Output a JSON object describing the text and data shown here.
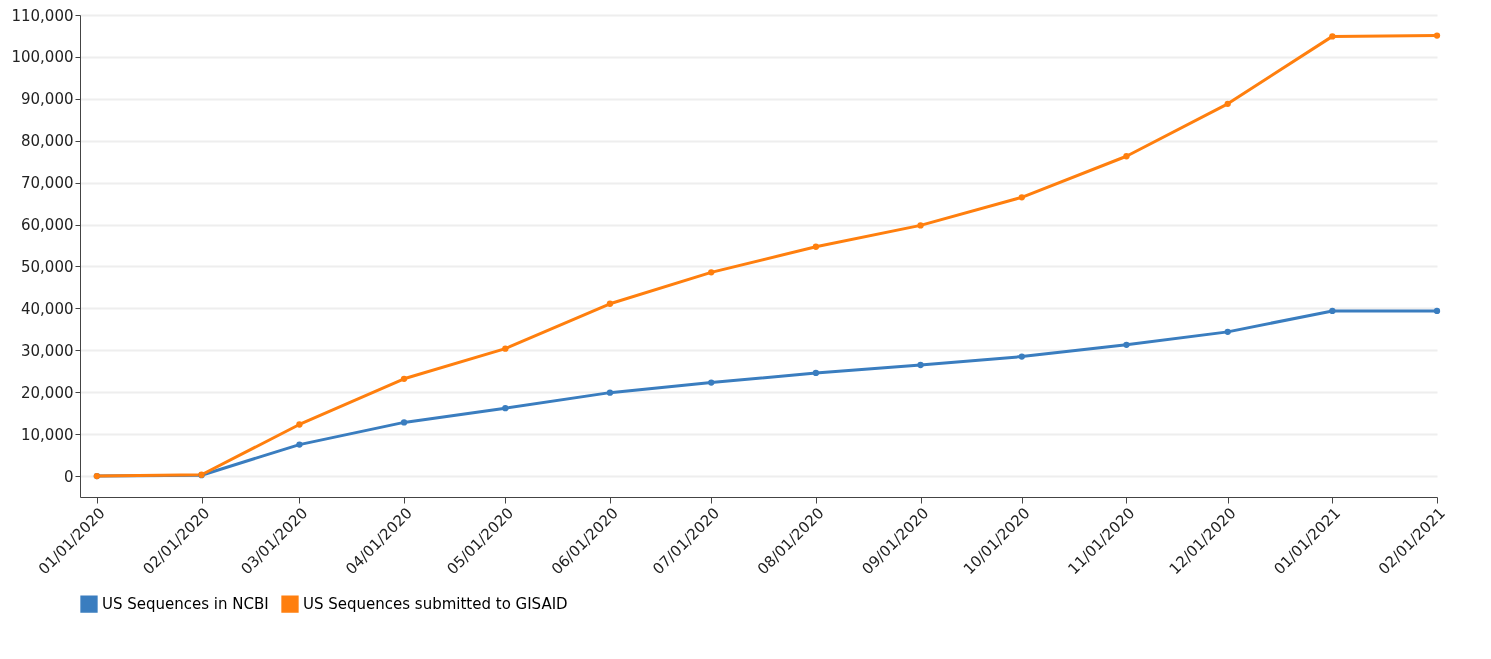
{
  "chart_data": {
    "type": "line",
    "x": [
      "2020-01-01",
      "2020-02-01",
      "2020-03-01",
      "2020-04-01",
      "2020-05-01",
      "2020-06-01",
      "2020-07-01",
      "2020-08-01",
      "2020-09-01",
      "2020-10-01",
      "2020-11-01",
      "2020-12-01",
      "2021-01-01",
      "2021-02-01"
    ],
    "xlim": [
      "2019-12-27",
      "2021-02-01"
    ],
    "xticks": [
      {
        "value": "2020-01-01",
        "label": "01/01/2020"
      },
      {
        "value": "2020-02-01",
        "label": "02/01/2020"
      },
      {
        "value": "2020-03-01",
        "label": "03/01/2020"
      },
      {
        "value": "2020-04-01",
        "label": "04/01/2020"
      },
      {
        "value": "2020-05-01",
        "label": "05/01/2020"
      },
      {
        "value": "2020-06-01",
        "label": "06/01/2020"
      },
      {
        "value": "2020-07-01",
        "label": "07/01/2020"
      },
      {
        "value": "2020-08-01",
        "label": "08/01/2020"
      },
      {
        "value": "2020-09-01",
        "label": "09/01/2020"
      },
      {
        "value": "2020-10-01",
        "label": "10/01/2020"
      },
      {
        "value": "2020-11-01",
        "label": "11/01/2020"
      },
      {
        "value": "2020-12-01",
        "label": "12/01/2020"
      },
      {
        "value": "2021-01-01",
        "label": "01/01/2021"
      },
      {
        "value": "2021-02-01",
        "label": "02/01/2021"
      }
    ],
    "ylim": [
      -5000,
      110000
    ],
    "yticks": [
      {
        "value": 0,
        "label": "0"
      },
      {
        "value": 10000,
        "label": "10,000"
      },
      {
        "value": 20000,
        "label": "20,000"
      },
      {
        "value": 30000,
        "label": "30,000"
      },
      {
        "value": 40000,
        "label": "40,000"
      },
      {
        "value": 50000,
        "label": "50,000"
      },
      {
        "value": 60000,
        "label": "60,000"
      },
      {
        "value": 70000,
        "label": "70,000"
      },
      {
        "value": 80000,
        "label": "80,000"
      },
      {
        "value": 90000,
        "label": "90,000"
      },
      {
        "value": 100000,
        "label": "100,000"
      },
      {
        "value": 110000,
        "label": "110,000"
      }
    ],
    "series": [
      {
        "name": "US Sequences in NCBI",
        "color": "#3a7dbf",
        "values": [
          0,
          200,
          7500,
          12800,
          16200,
          19900,
          22300,
          24600,
          26500,
          28500,
          31300,
          34400,
          39400,
          39400
        ]
      },
      {
        "name": "US Sequences submitted to GISAID",
        "color": "#ff7f0e",
        "values": [
          0,
          300,
          12300,
          23200,
          30400,
          41100,
          48600,
          54700,
          59800,
          66500,
          76300,
          88800,
          104900,
          105100
        ]
      }
    ],
    "grid": "y",
    "legend": "bottom",
    "marker": "circle",
    "line_style": "solid"
  }
}
